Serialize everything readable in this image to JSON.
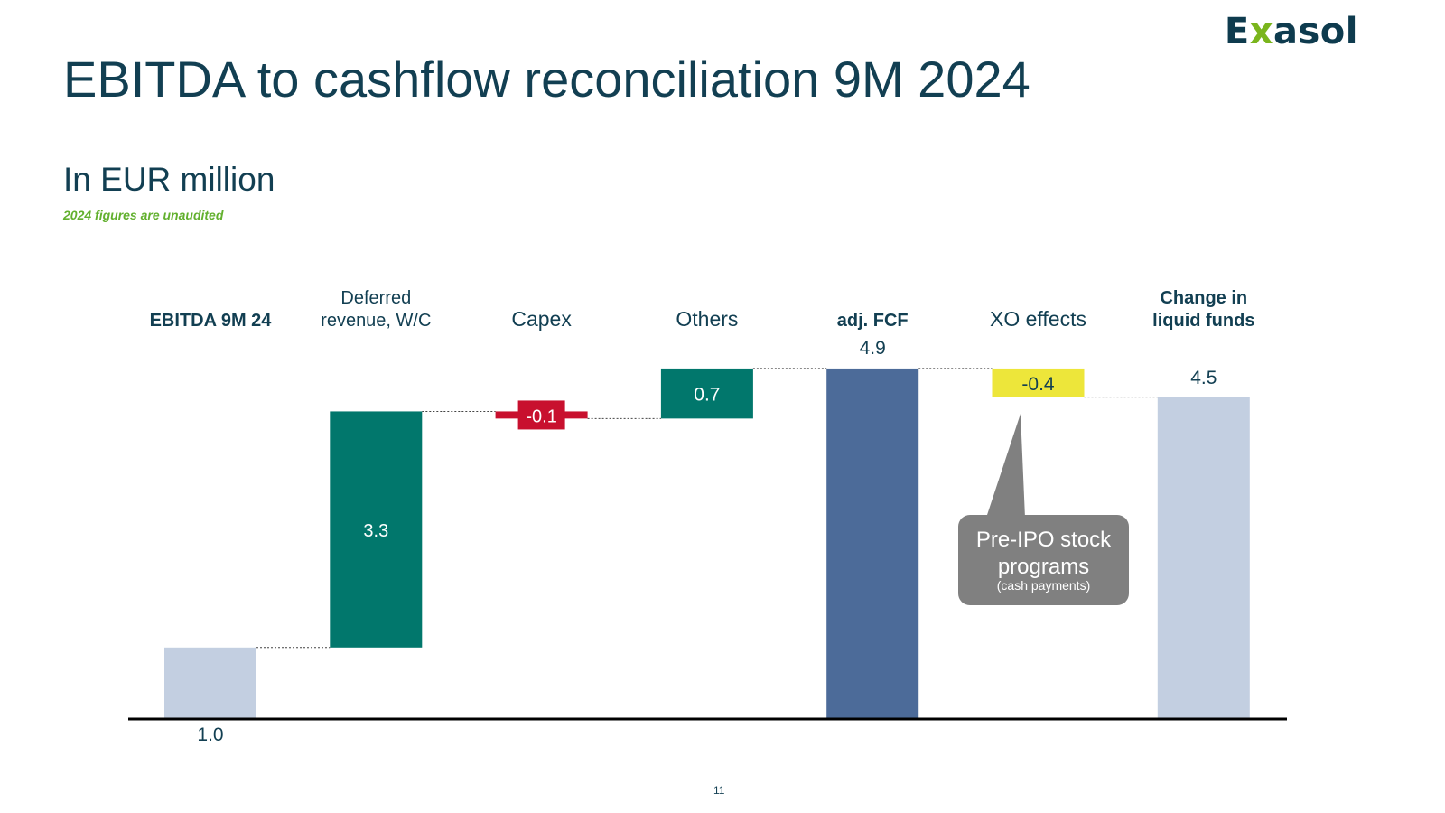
{
  "header": {
    "logo_text_pre": "E",
    "logo_text_x": "x",
    "logo_text_post": "asol",
    "title": "EBITDA to cashflow reconciliation 9M 2024",
    "subtitle": "In EUR million",
    "note": "2024 figures are unaudited",
    "page_number": "11"
  },
  "colors": {
    "total_light": "#c3cfe1",
    "total_dark": "#4c6b99",
    "positive": "#01776c",
    "negative": "#c8102e",
    "xo": "#ede63a",
    "callout": "#808080",
    "axis": "#000000"
  },
  "chart_data": {
    "type": "waterfall",
    "title": "",
    "ylim": [
      0,
      5.0
    ],
    "steps": [
      {
        "label_lines": [
          "EBITDA 9M 24"
        ],
        "bold": true,
        "kind": "total",
        "value": 1.0,
        "label": "1.0"
      },
      {
        "label_lines": [
          "Deferred",
          "revenue, W/C"
        ],
        "bold": false,
        "kind": "delta",
        "value": 3.3,
        "label": "3.3"
      },
      {
        "label_lines": [
          "Capex"
        ],
        "bold": false,
        "kind": "delta",
        "value": -0.1,
        "label": "-0.1"
      },
      {
        "label_lines": [
          "Others"
        ],
        "bold": false,
        "kind": "delta",
        "value": 0.7,
        "label": "0.7"
      },
      {
        "label_lines": [
          "adj. FCF"
        ],
        "bold": true,
        "kind": "total",
        "value": 4.9,
        "label": "4.9"
      },
      {
        "label_lines": [
          "XO effects"
        ],
        "bold": false,
        "kind": "delta",
        "value": -0.4,
        "label": "-0.4"
      },
      {
        "label_lines": [
          "Change in",
          "liquid funds"
        ],
        "bold": true,
        "kind": "total",
        "value": 4.5,
        "label": "4.5"
      }
    ],
    "callout": {
      "lines": [
        "Pre-IPO stock",
        "programs"
      ],
      "small": "(cash payments)"
    }
  }
}
